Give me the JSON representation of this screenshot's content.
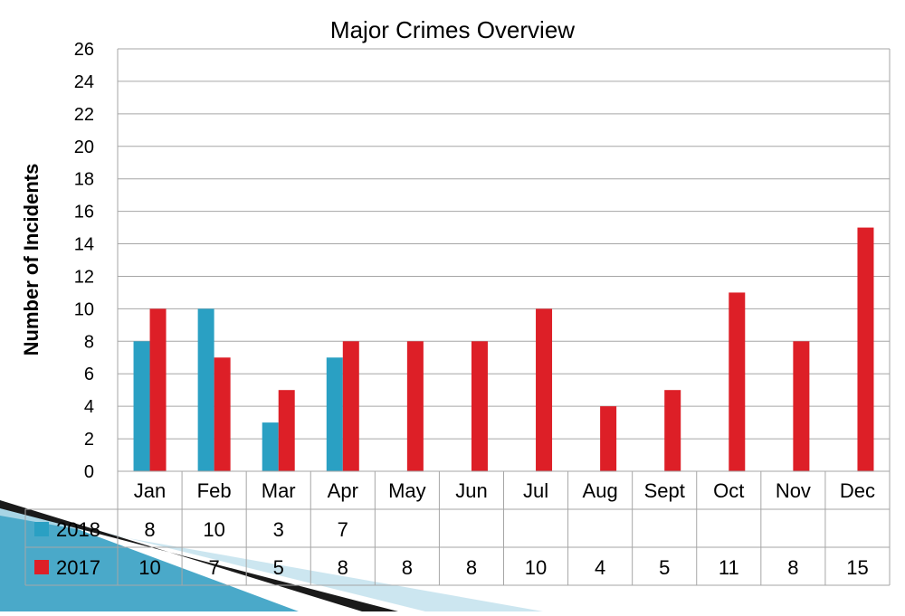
{
  "chart_data": {
    "type": "bar",
    "title": "Major Crimes Overview",
    "xlabel": "",
    "ylabel": "Number of Incidents",
    "ylim": [
      0,
      26
    ],
    "y_ticks": [
      0,
      2,
      4,
      6,
      8,
      10,
      12,
      14,
      16,
      18,
      20,
      22,
      24,
      26
    ],
    "grid": true,
    "legend": "data-table-left",
    "categories": [
      "Jan",
      "Feb",
      "Mar",
      "Apr",
      "May",
      "Jun",
      "Jul",
      "Aug",
      "Sept",
      "Oct",
      "Nov",
      "Dec"
    ],
    "series": [
      {
        "name": "2018",
        "color": "#2aa0c3",
        "values": [
          8,
          10,
          3,
          7,
          null,
          null,
          null,
          null,
          null,
          null,
          null,
          null
        ]
      },
      {
        "name": "2017",
        "color": "#dd1f27",
        "values": [
          10,
          7,
          5,
          8,
          8,
          8,
          10,
          4,
          5,
          11,
          8,
          15
        ]
      }
    ]
  },
  "colors": {
    "grid": "#a6a6a6",
    "decor_dark": "#1a1a1a",
    "decor_teal": "#4aa9c9",
    "decor_light": "#bfe0ec"
  }
}
